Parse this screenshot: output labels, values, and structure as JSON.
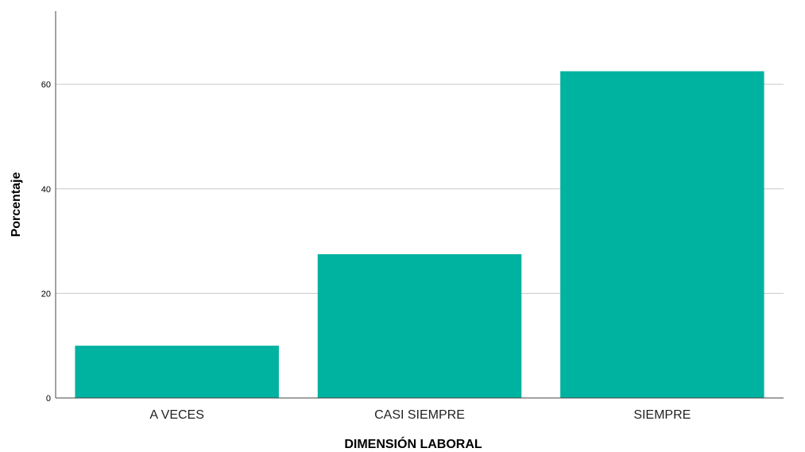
{
  "chart_data": {
    "type": "bar",
    "categories": [
      "A VECES",
      "CASI SIEMPRE",
      "SIEMPRE"
    ],
    "values": [
      10.0,
      27.5,
      62.5
    ],
    "xlabel": "DIMENSIÓN LABORAL",
    "ylabel": "Porcentaje",
    "ylim": [
      0,
      74
    ],
    "yticks": [
      0,
      20,
      40,
      60
    ],
    "grid": true,
    "bar_color": "#00b2a0"
  }
}
